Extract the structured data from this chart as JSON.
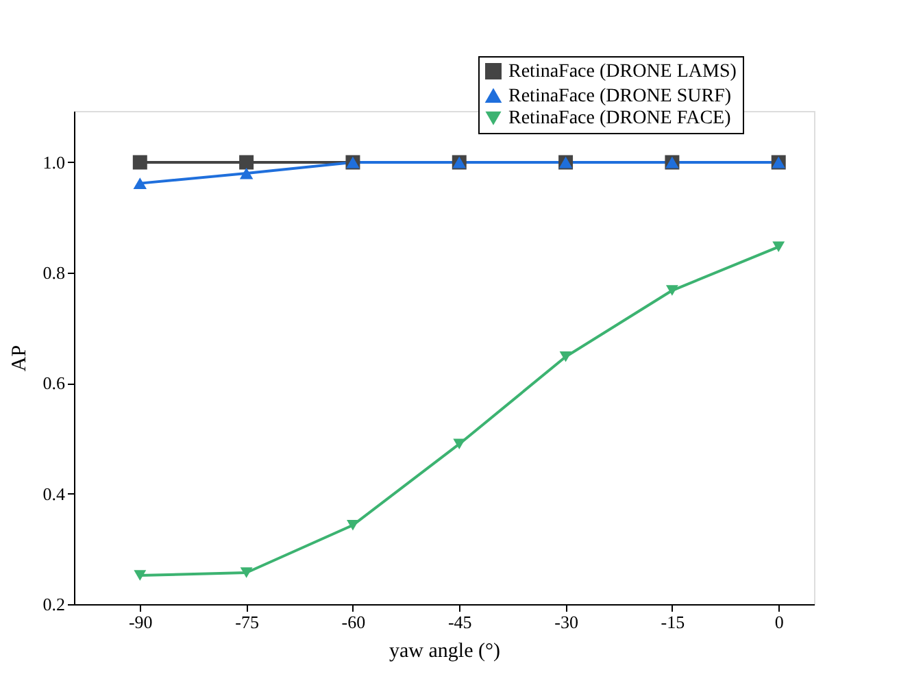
{
  "chart_data": {
    "type": "line",
    "xlabel": "yaw angle (°)",
    "ylabel": "AP",
    "x": [
      -90,
      -75,
      -60,
      -45,
      -30,
      -15,
      0
    ],
    "series": [
      {
        "name": "RetinaFace (DRONE LAMS)",
        "color": "#444444",
        "marker": "square",
        "values": [
          1.0,
          1.0,
          1.0,
          1.0,
          1.0,
          1.0,
          1.0
        ]
      },
      {
        "name": "RetinaFace (DRONE SURF)",
        "color": "#1f6fdc",
        "marker": "triangle",
        "values": [
          0.962,
          0.98,
          1.0,
          1.0,
          1.0,
          1.0,
          1.0
        ]
      },
      {
        "name": "RetinaFace (DRONE FACE)",
        "color": "#3cb371",
        "marker": "triangle-down",
        "values": [
          0.252,
          0.257,
          0.343,
          0.49,
          0.648,
          0.768,
          0.847
        ]
      }
    ],
    "xlim": [
      -99.3,
      5
    ],
    "xticks": [
      {
        "value": -90,
        "label": "-90"
      },
      {
        "value": -75,
        "label": "-75"
      },
      {
        "value": -60,
        "label": "-60"
      },
      {
        "value": -45,
        "label": "-45"
      },
      {
        "value": -30,
        "label": "-30"
      },
      {
        "value": -15,
        "label": "-15"
      },
      0
    ],
    "ylim": [
      0.2,
      1.093
    ],
    "yticks": [
      {
        "value": 0.2,
        "label": "0.2"
      },
      {
        "value": 0.4,
        "label": "0.4"
      },
      {
        "value": 0.6,
        "label": "0.6"
      },
      {
        "value": 0.8,
        "label": "0.8"
      },
      {
        "value": 1.0,
        "label": "1.0"
      }
    ],
    "grid": false,
    "legend": "top right",
    "line_style": "solid"
  }
}
